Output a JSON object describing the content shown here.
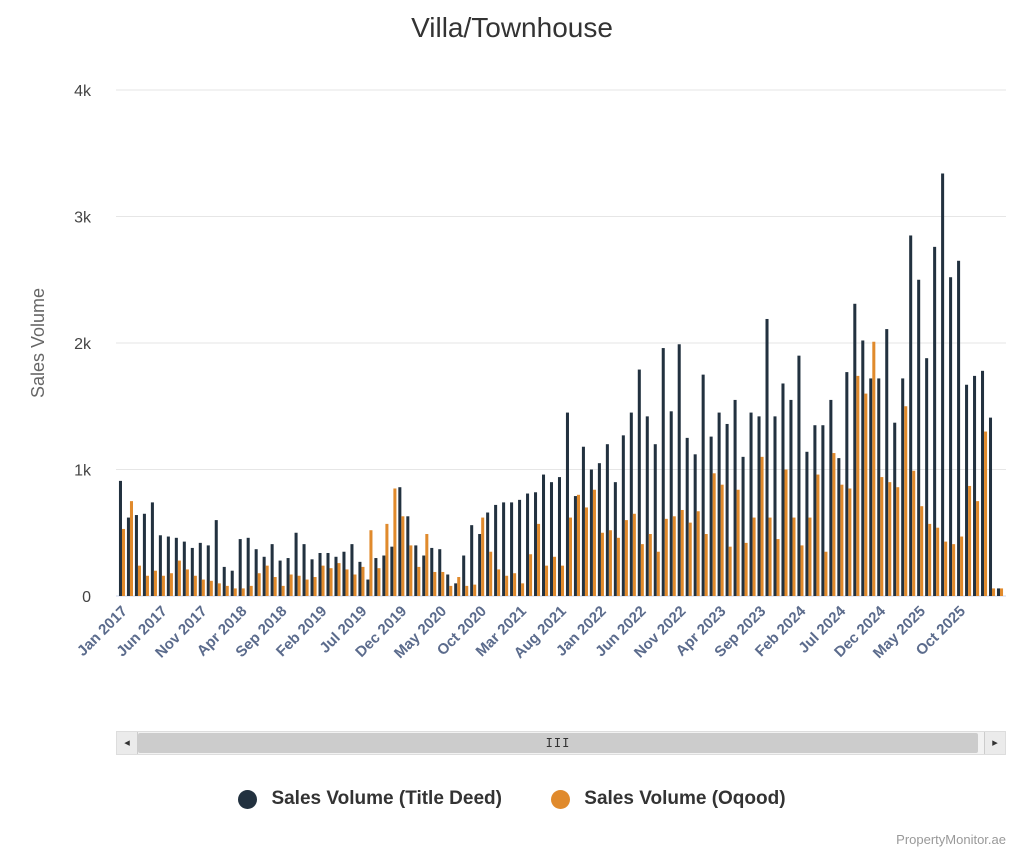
{
  "chart_data": {
    "type": "bar",
    "title": "Villa/Townhouse",
    "ylabel": "Sales Volume",
    "xlabel": "",
    "ylim": [
      0,
      4000
    ],
    "y_ticks": [
      "0",
      "1k",
      "2k",
      "3k",
      "4k"
    ],
    "grid": true,
    "legend": "bottom",
    "start_month": "2017-01",
    "x_tick_labels": [
      "Jan 2017",
      "Jun 2017",
      "Nov 2017",
      "Apr 2018",
      "Sep 2018",
      "Feb 2019",
      "Jul 2019",
      "Dec 2019",
      "May 2020",
      "Oct 2020",
      "Mar 2021",
      "Aug 2021",
      "Jan 2022",
      "Jun 2022",
      "Nov 2022",
      "Apr 2023",
      "Sep 2023",
      "Feb 2024",
      "Jul 2024",
      "Dec 2024",
      "May 2025",
      "Oct 2025"
    ],
    "series": [
      {
        "name": "Sales Volume (Title Deed)",
        "color": "#22313f",
        "values": [
          910,
          620,
          640,
          650,
          740,
          480,
          470,
          460,
          430,
          380,
          420,
          400,
          600,
          230,
          200,
          450,
          460,
          370,
          310,
          410,
          280,
          300,
          500,
          410,
          290,
          340,
          340,
          310,
          350,
          410,
          270,
          130,
          300,
          320,
          390,
          860,
          630,
          400,
          320,
          380,
          370,
          170,
          100,
          320,
          560,
          490,
          660,
          720,
          740,
          740,
          760,
          810,
          820,
          960,
          900,
          940,
          1450,
          790,
          1180,
          1000,
          1050,
          1200,
          900,
          1270,
          1450,
          1790,
          1420,
          1200,
          1960,
          1460,
          1990,
          1250,
          1120,
          1750,
          1260,
          1450,
          1360,
          1550,
          1100,
          1450,
          1420,
          2190,
          1420,
          1680,
          1550,
          1900,
          1140,
          1350,
          1350,
          1550,
          1090,
          1770,
          2310,
          2020,
          1720,
          1720,
          2110,
          1370,
          1720,
          2850,
          2500,
          1880,
          2760,
          3340,
          2520,
          2650,
          1670,
          1740,
          1780,
          1410,
          60
        ]
      },
      {
        "name": "Sales Volume (Oqood)",
        "color": "#e08a2c",
        "values": [
          530,
          750,
          240,
          160,
          200,
          160,
          180,
          280,
          210,
          160,
          130,
          120,
          100,
          80,
          60,
          60,
          80,
          180,
          240,
          150,
          80,
          170,
          160,
          130,
          150,
          240,
          220,
          260,
          210,
          170,
          230,
          520,
          220,
          570,
          850,
          630,
          400,
          230,
          490,
          190,
          190,
          80,
          150,
          80,
          90,
          620,
          350,
          210,
          160,
          180,
          100,
          330,
          570,
          240,
          310,
          240,
          620,
          800,
          700,
          840,
          500,
          520,
          460,
          600,
          650,
          410,
          490,
          350,
          610,
          630,
          680,
          580,
          670,
          490,
          970,
          880,
          390,
          840,
          420,
          620,
          1100,
          620,
          450,
          1000,
          620,
          400,
          620,
          960,
          350,
          1130,
          880,
          850,
          1740,
          1600,
          2010,
          940,
          900,
          860,
          1500,
          990,
          710,
          570,
          540,
          430,
          410,
          470,
          870,
          750,
          1300,
          60,
          60
        ]
      }
    ]
  },
  "scrollbar": {
    "left_arrow": "◂",
    "right_arrow": "▸",
    "grip": "III"
  },
  "credit": "PropertyMonitor.ae"
}
